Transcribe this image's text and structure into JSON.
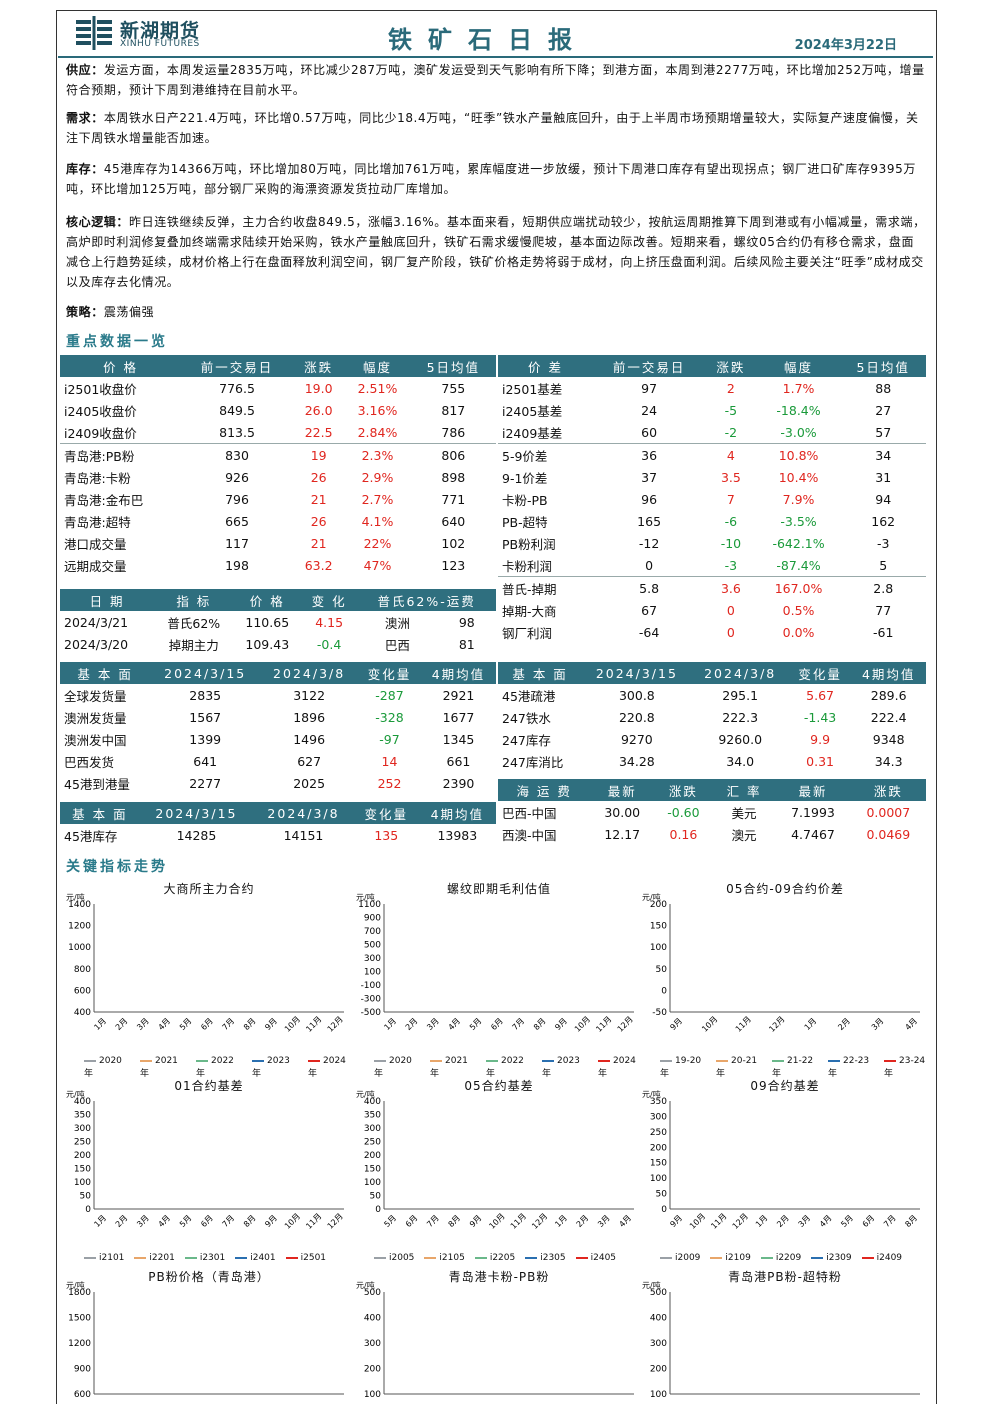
{
  "header": {
    "logo_cn": "新湖期货",
    "logo_en": "XINHU FUTURES",
    "title": "铁矿石日报",
    "date": "2024年3月22日"
  },
  "paras": {
    "supply_label": "供应：",
    "supply": "发运方面，本周发运量2835万吨，环比减少287万吨，澳矿发运受到天气影响有所下降；到港方面，本周到港2277万吨，环比增加252万吨，增量符合预期，预计下周到港维持在目前水平。",
    "demand_label": "需求：",
    "demand": "本周铁水日产221.4万吨，环比增0.57万吨，同比少18.4万吨，“旺季”铁水产量触底回升，由于上半周市场预期增量较大，实际复产速度偏慢，关注下周铁水增量能否加速。",
    "stock_label": "库存：",
    "stock": "45港库存为14366万吨，环比增加80万吨，同比增加761万吨，累库幅度进一步放缓，预计下周港口库存有望出现拐点；钢厂进口矿库存9395万吨，环比增加125万吨，部分钢厂采购的海漂资源发货拉动厂库增加。",
    "logic_label": "核心逻辑：",
    "logic": "昨日连铁继续反弹，主力合约收盘849.5，涨幅3.16%。基本面来看，短期供应端扰动较少，按航运周期推算下周到港或有小幅减量，需求端，高炉即时利润修复叠加终端需求陆续开始采购，铁水产量触底回升，铁矿石需求缓慢爬坡，基本面边际改善。短期来看，螺纹05合约仍有移仓需求，盘面减仓上行趋势延续，成材价格上行在盘面释放利润空间，钢厂复产阶段，铁矿价格走势将弱于成材，向上挤压盘面利润。后续风险主要关注“旺季”成材成交以及库存去化情况。",
    "strategy_label": "策略：",
    "strategy": "震荡偏强"
  },
  "sec1": "重点数据一览",
  "sec2": "关键指标走势",
  "t1": {
    "head": [
      "价 格",
      "前一交易日",
      "涨跌",
      "幅度",
      "5日均值"
    ],
    "rows": [
      [
        "i2501收盘价",
        "776.5",
        "19.0",
        "2.51%",
        "755"
      ],
      [
        "i2405收盘价",
        "849.5",
        "26.0",
        "3.16%",
        "817"
      ],
      [
        "i2409收盘价",
        "813.5",
        "22.5",
        "2.84%",
        "786"
      ],
      [
        "青岛港:PB粉",
        "830",
        "19",
        "2.3%",
        "806"
      ],
      [
        "青岛港:卡粉",
        "926",
        "26",
        "2.9%",
        "898"
      ],
      [
        "青岛港:金布巴",
        "796",
        "21",
        "2.7%",
        "771"
      ],
      [
        "青岛港:超特",
        "665",
        "26",
        "4.1%",
        "640"
      ],
      [
        "港口成交量",
        "117",
        "21",
        "22%",
        "102"
      ],
      [
        "远期成交量",
        "198",
        "63.2",
        "47%",
        "123"
      ]
    ]
  },
  "t2": {
    "head": [
      "价 差",
      "前一交易日",
      "涨跌",
      "幅度",
      "5日均值"
    ],
    "rows": [
      [
        "i2501基差",
        "97",
        "2",
        "1.7%",
        "88"
      ],
      [
        "i2405基差",
        "24",
        "-5",
        "-18.4%",
        "27"
      ],
      [
        "i2409基差",
        "60",
        "-2",
        "-3.0%",
        "57"
      ],
      [
        "5-9价差",
        "36",
        "4",
        "10.8%",
        "34"
      ],
      [
        "9-1价差",
        "37",
        "3.5",
        "10.4%",
        "31"
      ],
      [
        "卡粉-PB",
        "96",
        "7",
        "7.9%",
        "94"
      ],
      [
        "PB-超特",
        "165",
        "-6",
        "-3.5%",
        "162"
      ],
      [
        "PB粉利润",
        "-12",
        "-10",
        "-642.1%",
        "-3"
      ],
      [
        "卡粉利润",
        "0",
        "-3",
        "-87.4%",
        "5"
      ],
      [
        "普氏-掉期",
        "5.8",
        "3.6",
        "167.0%",
        "2.8"
      ],
      [
        "掉期-大商",
        "67",
        "0",
        "0.5%",
        "77"
      ],
      [
        "钢厂利润",
        "-64",
        "0",
        "0.0%",
        "-61"
      ]
    ]
  },
  "t3": {
    "head": [
      "日 期",
      "指 标",
      "价 格",
      "变 化",
      "普氏62%-运费"
    ],
    "rows": [
      [
        "2024/3/21",
        "普氏62%",
        "110.65",
        "4.15",
        "澳洲",
        "98"
      ],
      [
        "2024/3/20",
        "掉期主力",
        "109.43",
        "-0.4",
        "巴西",
        "81"
      ]
    ]
  },
  "t4": {
    "head": [
      "基 本 面",
      "2024/3/15",
      "2024/3/8",
      "变化量",
      "4期均值"
    ],
    "rows": [
      [
        "全球发货量",
        "2835",
        "3122",
        "-287",
        "2921"
      ],
      [
        "澳洲发货量",
        "1567",
        "1896",
        "-328",
        "1677"
      ],
      [
        "澳洲发中国",
        "1399",
        "1496",
        "-97",
        "1345"
      ],
      [
        "巴西发货",
        "641",
        "627",
        "14",
        "661"
      ],
      [
        "45港到港量",
        "2277",
        "2025",
        "252",
        "2390"
      ]
    ]
  },
  "t5": {
    "head": [
      "基 本 面",
      "2024/3/15",
      "2024/3/8",
      "变化量",
      "4期均值"
    ],
    "rows": [
      [
        "45港疏港",
        "300.8",
        "295.1",
        "5.67",
        "289.6"
      ],
      [
        "247铁水",
        "220.8",
        "222.3",
        "-1.43",
        "222.4"
      ],
      [
        "247库存",
        "9270",
        "9260.0",
        "9.9",
        "9348"
      ],
      [
        "247库消比",
        "34.28",
        "34.0",
        "0.31",
        "34.3"
      ]
    ]
  },
  "t6": {
    "head": [
      "基 本 面",
      "2024/3/15",
      "2024/3/8",
      "变化量",
      "4期均值"
    ],
    "rows": [
      [
        "45港库存",
        "14285",
        "14151",
        "135",
        "13983"
      ]
    ]
  },
  "t7": {
    "head": [
      "海 运 费",
      "最新",
      "涨跌",
      "汇 率",
      "最新",
      "涨跌"
    ],
    "rows": [
      [
        "巴西-中国",
        "30.00",
        "-0.60",
        "美元",
        "7.1993",
        "0.0007"
      ],
      [
        "西澳-中国",
        "12.17",
        "0.16",
        "澳元",
        "4.7467",
        "0.0469"
      ]
    ]
  },
  "charts": [
    {
      "title": "大商所主力合约",
      "unit": "元/吨",
      "yticks": [
        "1400",
        "1200",
        "1000",
        "800",
        "600",
        "400"
      ],
      "xticks": [
        "1月",
        "2月",
        "3月",
        "4月",
        "5月",
        "6月",
        "7月",
        "8月",
        "9月",
        "10月",
        "11月",
        "12月"
      ],
      "legend": [
        "2020年",
        "2021年",
        "2022年",
        "2023年",
        "2024年"
      ]
    },
    {
      "title": "螺纹即期毛利估值",
      "unit": "元/吨",
      "yticks": [
        "1100",
        "900",
        "700",
        "500",
        "300",
        "100",
        "-100",
        "-300",
        "-500"
      ],
      "xticks": [
        "1月",
        "2月",
        "3月",
        "4月",
        "5月",
        "6月",
        "7月",
        "8月",
        "9月",
        "10月",
        "11月",
        "12月"
      ],
      "legend": [
        "2020年",
        "2021年",
        "2022年",
        "2023年",
        "2024年"
      ]
    },
    {
      "title": "05合约-09合约价差",
      "unit": "元/吨",
      "yticks": [
        "200",
        "150",
        "100",
        "50",
        "0",
        "-50"
      ],
      "xticks": [
        "9月",
        "10月",
        "11月",
        "12月",
        "1月",
        "2月",
        "3月",
        "4月"
      ],
      "legend": [
        "19-20年",
        "20-21年",
        "21-22年",
        "22-23年",
        "23-24年"
      ]
    },
    {
      "title": "01合约基差",
      "unit": "元/吨",
      "yticks": [
        "400",
        "350",
        "300",
        "250",
        "200",
        "150",
        "100",
        "50",
        "0"
      ],
      "xticks": [
        "1月",
        "2月",
        "3月",
        "4月",
        "5月",
        "6月",
        "7月",
        "8月",
        "9月",
        "10月",
        "11月",
        "12月"
      ],
      "legend": [
        "i2101",
        "i2201",
        "i2301",
        "i2401",
        "i2501"
      ]
    },
    {
      "title": "05合约基差",
      "unit": "元/吨",
      "yticks": [
        "400",
        "350",
        "300",
        "250",
        "200",
        "150",
        "100",
        "50",
        "0"
      ],
      "xticks": [
        "5月",
        "6月",
        "7月",
        "8月",
        "9月",
        "10月",
        "11月",
        "12月",
        "1月",
        "2月",
        "3月",
        "4月"
      ],
      "legend": [
        "i2005",
        "i2105",
        "i2205",
        "i2305",
        "i2405"
      ]
    },
    {
      "title": "09合约基差",
      "unit": "元/吨",
      "yticks": [
        "350",
        "300",
        "250",
        "200",
        "150",
        "100",
        "50",
        "0"
      ],
      "xticks": [
        "9月",
        "10月",
        "11月",
        "12月",
        "1月",
        "2月",
        "3月",
        "4月",
        "5月",
        "6月",
        "7月",
        "8月"
      ],
      "legend": [
        "i2009",
        "i2109",
        "i2209",
        "i2309",
        "i2409"
      ]
    },
    {
      "title": "PB粉价格（青岛港）",
      "unit": "元/吨",
      "yticks": [
        "1800",
        "1500",
        "1200",
        "900",
        "600"
      ],
      "xticks": [],
      "legend": []
    },
    {
      "title": "青岛港卡粉-PB粉",
      "unit": "元/吨",
      "yticks": [
        "500",
        "400",
        "300",
        "200",
        "100"
      ],
      "xticks": [],
      "legend": []
    },
    {
      "title": "青岛港PB粉-超特粉",
      "unit": "元/吨",
      "yticks": [
        "500",
        "400",
        "300",
        "200",
        "100"
      ],
      "xticks": [],
      "legend": []
    }
  ],
  "colors": {
    "accent": "#2f6f7f",
    "red": "#e0261f",
    "green": "#1a9a3a",
    "series": [
      "#9aa0a6",
      "#e8a66a",
      "#6ab88a",
      "#2a6fb0",
      "#e0261f"
    ]
  }
}
